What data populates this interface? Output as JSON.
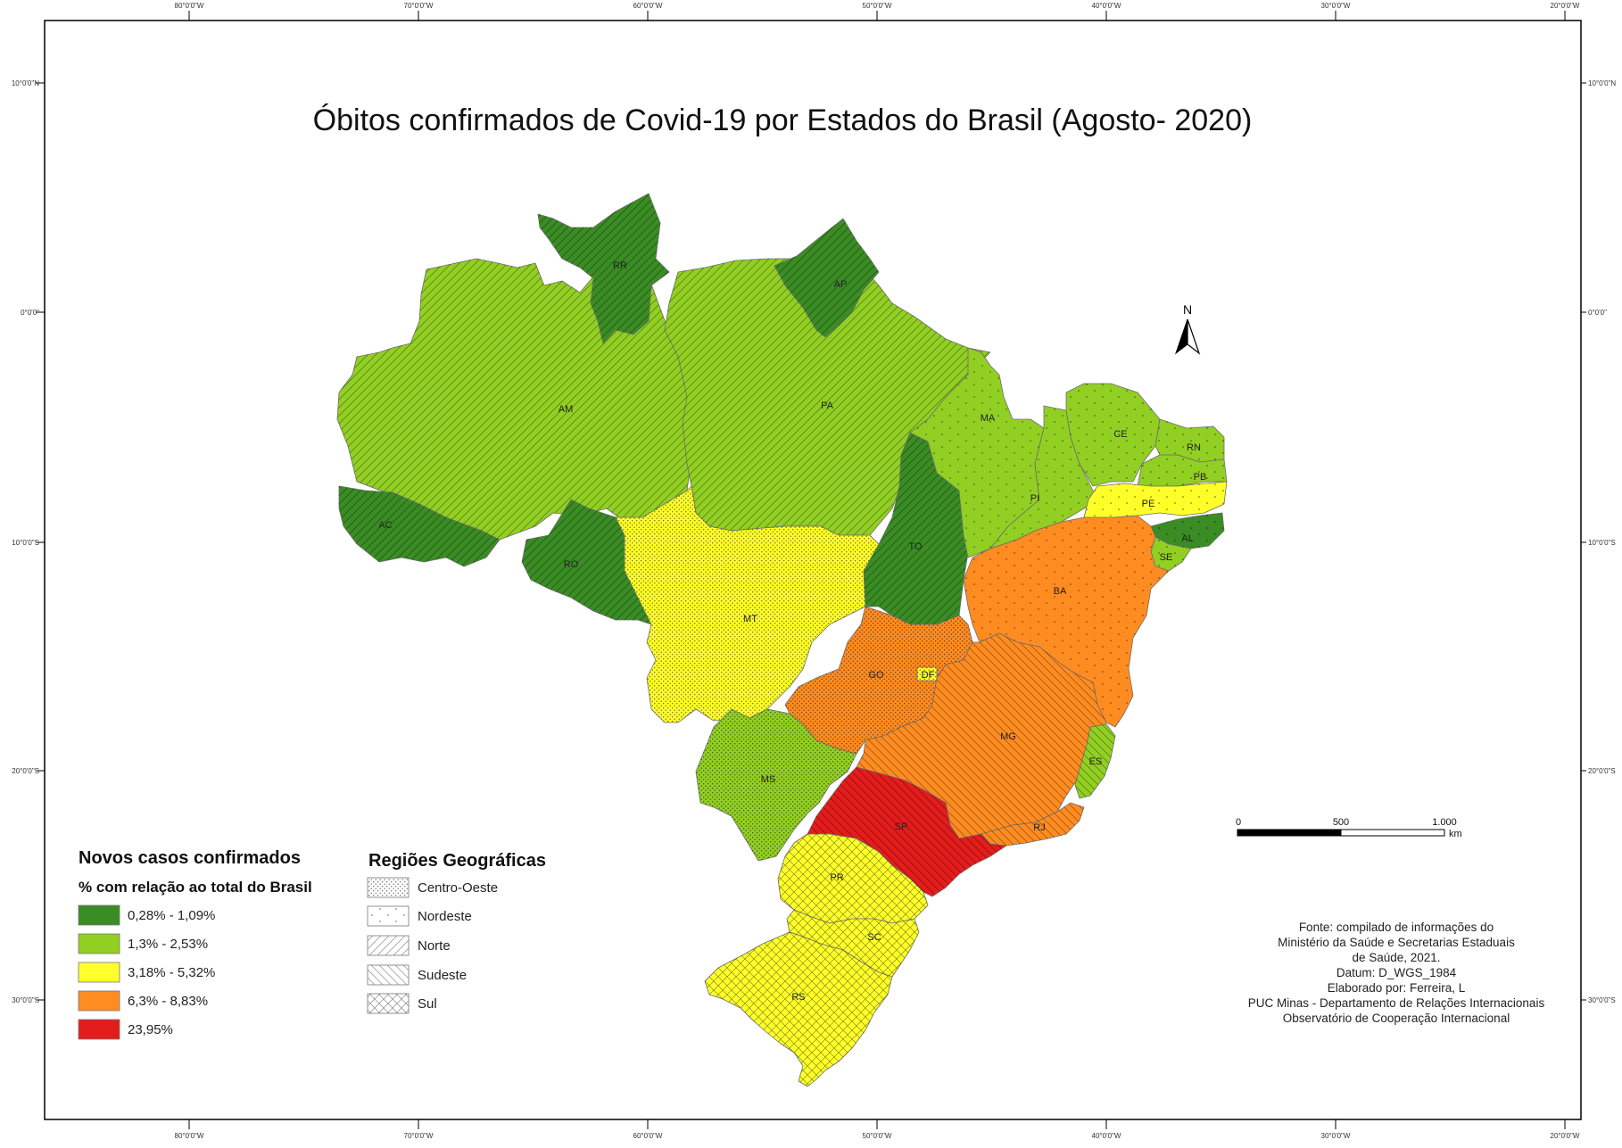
{
  "map": {
    "title": "Óbitos confirmados de Covid-19 por Estados do Brasil (Agosto- 2020)",
    "graticule": {
      "longitudes": [
        "80°0'0\"W",
        "70°0'0\"W",
        "60°0'0\"W",
        "50°0'0\"W",
        "40°0'0\"W",
        "30°0'0\"W",
        "20°0'0\"W"
      ],
      "latitudes": [
        "10°0'0\"N",
        "0°0'0\"",
        "10°0'0\"S",
        "20°0'0\"S",
        "30°0'0\"S"
      ]
    },
    "north_arrow": {
      "label": "N"
    },
    "scale_bar": {
      "labels": [
        "0",
        "500",
        "1.000"
      ],
      "unit": "km"
    },
    "legend": {
      "heading": "Novos casos confirmados",
      "subheading": "% com relação ao total do Brasil",
      "classes": [
        {
          "label": "0,28% - 1,09%",
          "color": "#3a8c24"
        },
        {
          "label": "1,3% - 2,53%",
          "color": "#92cf23"
        },
        {
          "label": "3,18% - 5,32%",
          "color": "#ffff2a"
        },
        {
          "label": "6,3% - 8,83%",
          "color": "#ff8c21"
        },
        {
          "label": "23,95%",
          "color": "#e41c1c"
        }
      ]
    },
    "regions_legend": {
      "heading": "Regiões Geográficas",
      "items": [
        {
          "label": "Centro-Oeste",
          "pattern": "dots"
        },
        {
          "label": "Nordeste",
          "pattern": "sparse-dots"
        },
        {
          "label": "Norte",
          "pattern": "diagonal"
        },
        {
          "label": "Sudeste",
          "pattern": "back-diagonal"
        },
        {
          "label": "Sul",
          "pattern": "crosshatch"
        }
      ]
    },
    "credits": [
      "Fonte: compilado de informações do",
      "Ministério da Saúde e Secretarias Estaduais",
      "de Saúde, 2021.",
      "Datum: D_WGS_1984",
      "Elaborado por: Ferreira, L",
      "PUC Minas - Departamento de Relações Internacionais",
      "Observatório de Cooperação Internacional"
    ],
    "states": [
      {
        "code": "RR",
        "class": 0,
        "region": "Norte"
      },
      {
        "code": "AP",
        "class": 0,
        "region": "Norte"
      },
      {
        "code": "AM",
        "class": 1,
        "region": "Norte"
      },
      {
        "code": "PA",
        "class": 1,
        "region": "Norte"
      },
      {
        "code": "AC",
        "class": 0,
        "region": "Norte"
      },
      {
        "code": "RO",
        "class": 0,
        "region": "Norte"
      },
      {
        "code": "TO",
        "class": 0,
        "region": "Norte"
      },
      {
        "code": "MA",
        "class": 1,
        "region": "Nordeste"
      },
      {
        "code": "PI",
        "class": 1,
        "region": "Nordeste"
      },
      {
        "code": "CE",
        "class": 1,
        "region": "Nordeste"
      },
      {
        "code": "RN",
        "class": 1,
        "region": "Nordeste"
      },
      {
        "code": "PB",
        "class": 1,
        "region": "Nordeste"
      },
      {
        "code": "PE",
        "class": 2,
        "region": "Nordeste"
      },
      {
        "code": "AL",
        "class": 0,
        "region": "Nordeste"
      },
      {
        "code": "SE",
        "class": 1,
        "region": "Nordeste"
      },
      {
        "code": "BA",
        "class": 3,
        "region": "Nordeste"
      },
      {
        "code": "MT",
        "class": 2,
        "region": "Centro-Oeste"
      },
      {
        "code": "GO",
        "class": 3,
        "region": "Centro-Oeste"
      },
      {
        "code": "DF",
        "class": 2,
        "region": "Centro-Oeste"
      },
      {
        "code": "MS",
        "class": 1,
        "region": "Centro-Oeste"
      },
      {
        "code": "MG",
        "class": 3,
        "region": "Sudeste"
      },
      {
        "code": "ES",
        "class": 1,
        "region": "Sudeste"
      },
      {
        "code": "RJ",
        "class": 3,
        "region": "Sudeste"
      },
      {
        "code": "SP",
        "class": 4,
        "region": "Sudeste"
      },
      {
        "code": "PR",
        "class": 2,
        "region": "Sul"
      },
      {
        "code": "SC",
        "class": 2,
        "region": "Sul"
      },
      {
        "code": "RS",
        "class": 2,
        "region": "Sul"
      }
    ]
  }
}
